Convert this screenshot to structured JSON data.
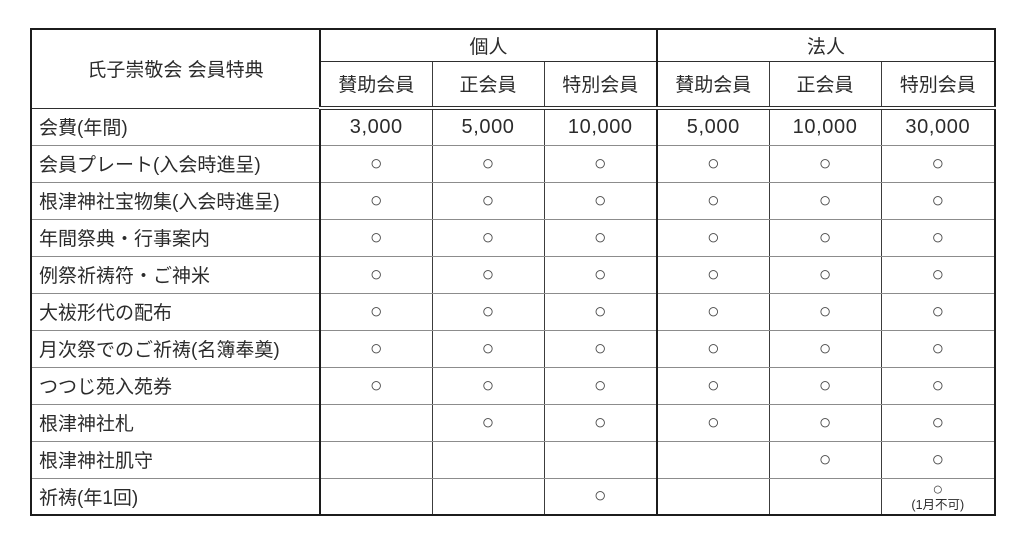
{
  "table": {
    "title": "氏子崇敬会 会員特典",
    "groups": [
      {
        "label": "個人",
        "cols": [
          "賛助会員",
          "正会員",
          "特別会員"
        ]
      },
      {
        "label": "法人",
        "cols": [
          "賛助会員",
          "正会員",
          "特別会員"
        ]
      }
    ],
    "mark_symbol": "○",
    "rows": [
      {
        "label": "会費(年間)",
        "cells": [
          "3,000",
          "5,000",
          "10,000",
          "5,000",
          "10,000",
          "30,000"
        ]
      },
      {
        "label": "会員プレート(入会時進呈)",
        "cells": [
          "○",
          "○",
          "○",
          "○",
          "○",
          "○"
        ]
      },
      {
        "label": "根津神社宝物集(入会時進呈)",
        "cells": [
          "○",
          "○",
          "○",
          "○",
          "○",
          "○"
        ]
      },
      {
        "label": "年間祭典・行事案内",
        "cells": [
          "○",
          "○",
          "○",
          "○",
          "○",
          "○"
        ]
      },
      {
        "label": "例祭祈祷符・ご神米",
        "cells": [
          "○",
          "○",
          "○",
          "○",
          "○",
          "○"
        ]
      },
      {
        "label": "大祓形代の配布",
        "cells": [
          "○",
          "○",
          "○",
          "○",
          "○",
          "○"
        ]
      },
      {
        "label": "月次祭でのご祈祷(名簿奉奠)",
        "cells": [
          "○",
          "○",
          "○",
          "○",
          "○",
          "○"
        ]
      },
      {
        "label": "つつじ苑入苑券",
        "cells": [
          "○",
          "○",
          "○",
          "○",
          "○",
          "○"
        ]
      },
      {
        "label": "根津神社札",
        "cells": [
          "",
          "○",
          "○",
          "○",
          "○",
          "○"
        ]
      },
      {
        "label": "根津神社肌守",
        "cells": [
          "",
          "",
          "",
          "",
          "○",
          "○"
        ]
      },
      {
        "label": "祈祷(年1回)",
        "cells": [
          "",
          "",
          "○",
          "",
          "",
          {
            "v": "○",
            "note": "(1月不可)"
          }
        ]
      }
    ]
  },
  "colors": {
    "background": "#ffffff",
    "text": "#2b2b2b",
    "outer_border": "#1c1c1c",
    "inner_vertical_border": "#3c3c3c",
    "inner_horizontal_border": "#8c8c8c",
    "mark": "#4a4a4a"
  }
}
